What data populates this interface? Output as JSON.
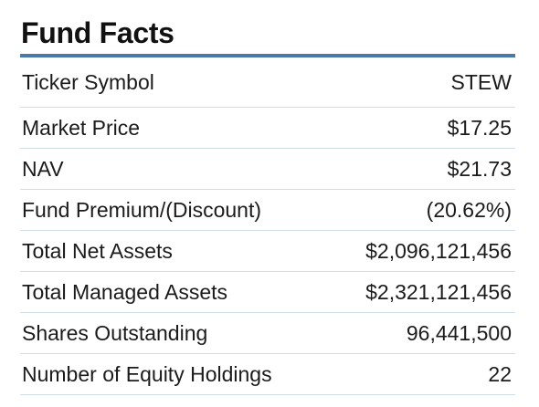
{
  "panel": {
    "title": "Fund Facts",
    "rows": [
      {
        "label": "Ticker Symbol",
        "value": "STEW"
      },
      {
        "label": "Market Price",
        "value": "$17.25"
      },
      {
        "label": "NAV",
        "value": "$21.73"
      },
      {
        "label": "Fund Premium/(Discount)",
        "value": "(20.62%)"
      },
      {
        "label": "Total Net Assets",
        "value": "$2,096,121,456"
      },
      {
        "label": "Total Managed Assets",
        "value": "$2,321,121,456"
      },
      {
        "label": "Shares Outstanding",
        "value": "96,441,500"
      },
      {
        "label": "Number of Equity Holdings",
        "value": "22"
      }
    ]
  },
  "colors": {
    "title_rule": "#4a7ba8",
    "row_divider": "#cfdde6",
    "text": "#1b1b1b"
  }
}
